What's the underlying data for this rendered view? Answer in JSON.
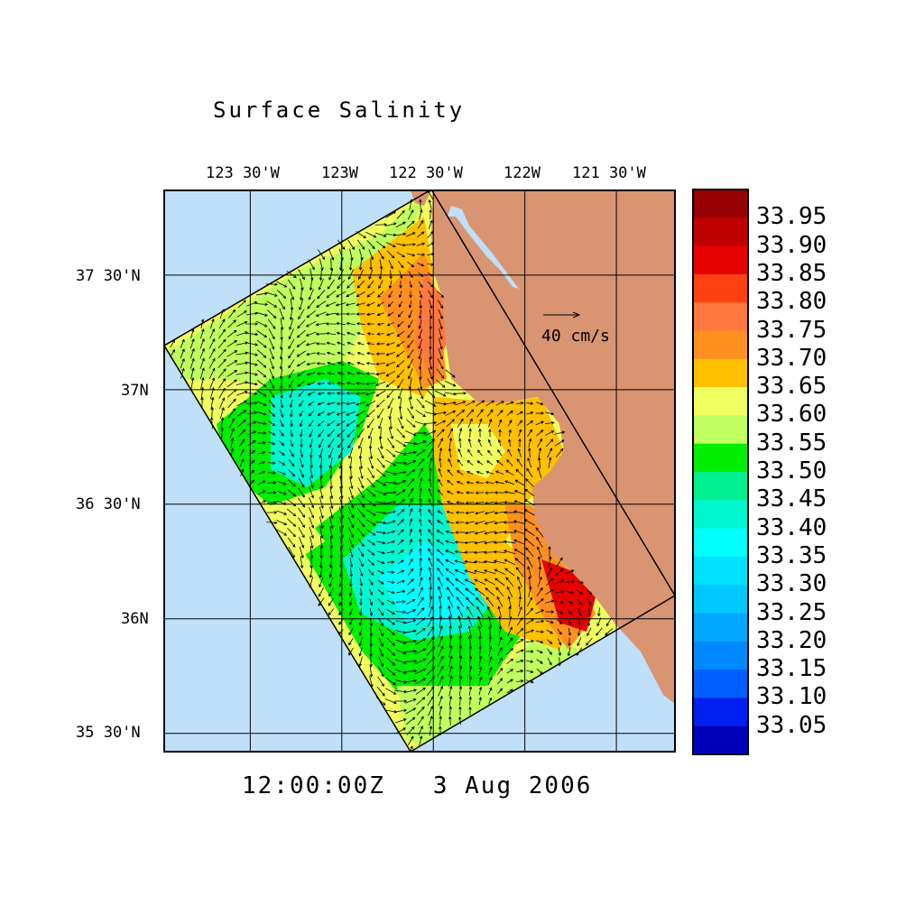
{
  "title": "Surface Salinity",
  "time_label": "12:00:00Z   3 Aug 2006",
  "chart_data": {
    "type": "heatmap",
    "title": "Surface Salinity",
    "variable": "surface salinity with surface current vectors",
    "x_ticks": [
      {
        "value": -123.5,
        "label": "123 30'W"
      },
      {
        "value": -123.0,
        "label": "123W"
      },
      {
        "value": -122.5,
        "label": "122 30'W"
      },
      {
        "value": -122.0,
        "label": "122W"
      },
      {
        "value": -121.5,
        "label": "121 30'W"
      }
    ],
    "y_ticks": [
      {
        "value": 37.5,
        "label": "37 30'N"
      },
      {
        "value": 37.0,
        "label": "37N"
      },
      {
        "value": 36.5,
        "label": "36 30'N"
      },
      {
        "value": 36.0,
        "label": "36N"
      },
      {
        "value": 35.5,
        "label": "35 30'N"
      }
    ],
    "xlim": [
      -123.97,
      -121.18
    ],
    "ylim": [
      35.42,
      37.87
    ],
    "grid": true,
    "ocean_color": "#c0e0fa",
    "land_color": "#d99472",
    "reference_vector": {
      "label": "40 cm/s",
      "speed_cm_s": 40
    },
    "colorbar": {
      "position": "right",
      "labels": [
        "33.95",
        "33.90",
        "33.85",
        "33.80",
        "33.75",
        "33.70",
        "33.65",
        "33.60",
        "33.55",
        "33.50",
        "33.45",
        "33.40",
        "33.35",
        "33.30",
        "33.25",
        "33.20",
        "33.15",
        "33.10",
        "33.05"
      ],
      "colors": [
        "#960000",
        "#c00000",
        "#e60000",
        "#ff4010",
        "#ff7840",
        "#ff9020",
        "#ffc000",
        "#f0ff60",
        "#c0ff60",
        "#00ee00",
        "#00f090",
        "#00f8d0",
        "#00ffff",
        "#00e0ff",
        "#00c8ff",
        "#00a8ff",
        "#0088ff",
        "#0060ff",
        "#0020f0",
        "#0000b8"
      ]
    }
  }
}
